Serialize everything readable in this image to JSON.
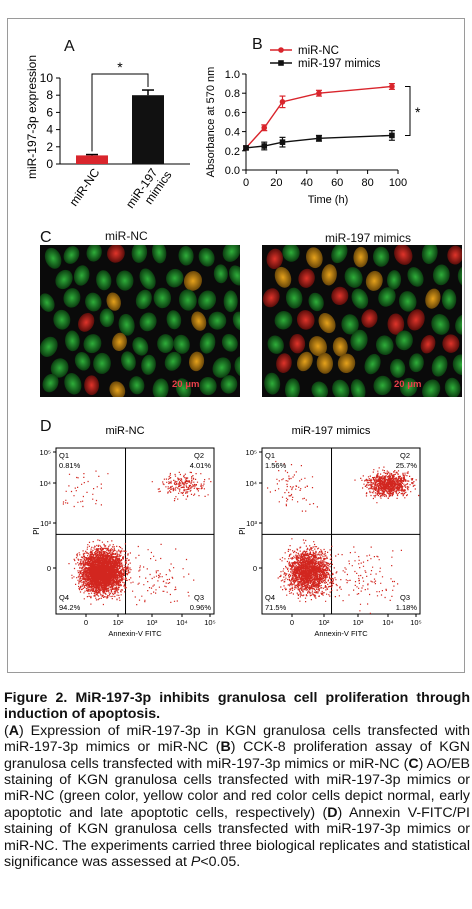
{
  "figure": {
    "panel_a": {
      "label": "A",
      "chart_data": {
        "type": "bar",
        "categories": [
          "miR-NC",
          "miR-197 mimics"
        ],
        "values": [
          1.0,
          8.0
        ],
        "errors": [
          0.1,
          0.6
        ],
        "colors": [
          "#d9252c",
          "#111111"
        ],
        "ylabel": "miR-197-3p expression",
        "yticks": [
          "0",
          "2",
          "4",
          "6",
          "8",
          "10"
        ],
        "ylim": [
          0,
          10
        ],
        "significance": "*"
      }
    },
    "panel_b": {
      "label": "B",
      "chart_data": {
        "type": "line",
        "xlabel": "Time (h)",
        "ylabel": "Absorbance at 570 nm",
        "xticks": [
          "0",
          "20",
          "40",
          "60",
          "80",
          "100"
        ],
        "yticks": [
          "0.0",
          "0.2",
          "0.4",
          "0.6",
          "0.8",
          "1.0"
        ],
        "xlim": [
          0,
          100
        ],
        "ylim": [
          0,
          1.0
        ],
        "significance": "*",
        "series": [
          {
            "name": "miR-NC",
            "color": "#d9252c",
            "x": [
              0,
              12,
              24,
              48,
              96
            ],
            "y": [
              0.23,
              0.44,
              0.71,
              0.8,
              0.87
            ],
            "err": [
              0.02,
              0.03,
              0.06,
              0.03,
              0.03
            ]
          },
          {
            "name": "miR-197 mimics",
            "color": "#111111",
            "x": [
              0,
              12,
              24,
              48,
              96
            ],
            "y": [
              0.23,
              0.25,
              0.29,
              0.33,
              0.36
            ],
            "err": [
              0.02,
              0.04,
              0.05,
              0.03,
              0.05
            ]
          }
        ]
      }
    },
    "panel_c": {
      "label": "C",
      "left_title": "miR-NC",
      "right_title": "miR-197 mimics",
      "scalebar": "20 μm"
    },
    "panel_d": {
      "label": "D",
      "xlabel": "Annexin-V FITC",
      "ylabel": "PI",
      "yticks": [
        "10⁵",
        "10⁴",
        "10³",
        "0"
      ],
      "xticks": [
        "0",
        "10²",
        "10³",
        "10⁴",
        "10⁵"
      ],
      "plots": [
        {
          "title": "miR-NC",
          "q1": "0.81%",
          "q2": "4.01%",
          "q3": "0.96%",
          "q4": "94.2%",
          "q1_label": "Q1",
          "q2_label": "Q2",
          "q3_label": "Q3",
          "q4_label": "Q4"
        },
        {
          "title": "miR-197 mimics",
          "q1": "1.56%",
          "q2": "25.7%",
          "q3": "1.18%",
          "q4": "71.5%",
          "q1_label": "Q1",
          "q2_label": "Q2",
          "q3_label": "Q3",
          "q4_label": "Q4"
        }
      ]
    }
  },
  "caption": {
    "title": "Figure 2. MiR-197-3p inhibits granulosa cell proliferation through induction of apoptosis.",
    "a_tag": "A",
    "a_text": " Expression of miR-197-3p in KGN granulosa cells transfected with miR-197-3p mimics or miR-NC (",
    "b_tag": "B",
    "b_text": ") CCK-8 proliferation assay of KGN granulosa cells transfected with miR-197-3p mimics or miR-NC (",
    "c_tag": "C",
    "c_text": ") AO/EB staining of KGN granulosa cells transfected with miR-197-3p mimics or miR-NC (green color, yellow color and red color cells depict normal, early apoptotic and late apoptotic cells, respectively) (",
    "d_tag": "D",
    "d_text": ") Annexin V-FITC/PI staining of KGN granulosa cells transfected with miR-197-3p mimics or miR-NC. The experiments carried three biological replicates and statistical significance was assessed at ",
    "p_italic": "P",
    "p_tail": "<0.05."
  }
}
